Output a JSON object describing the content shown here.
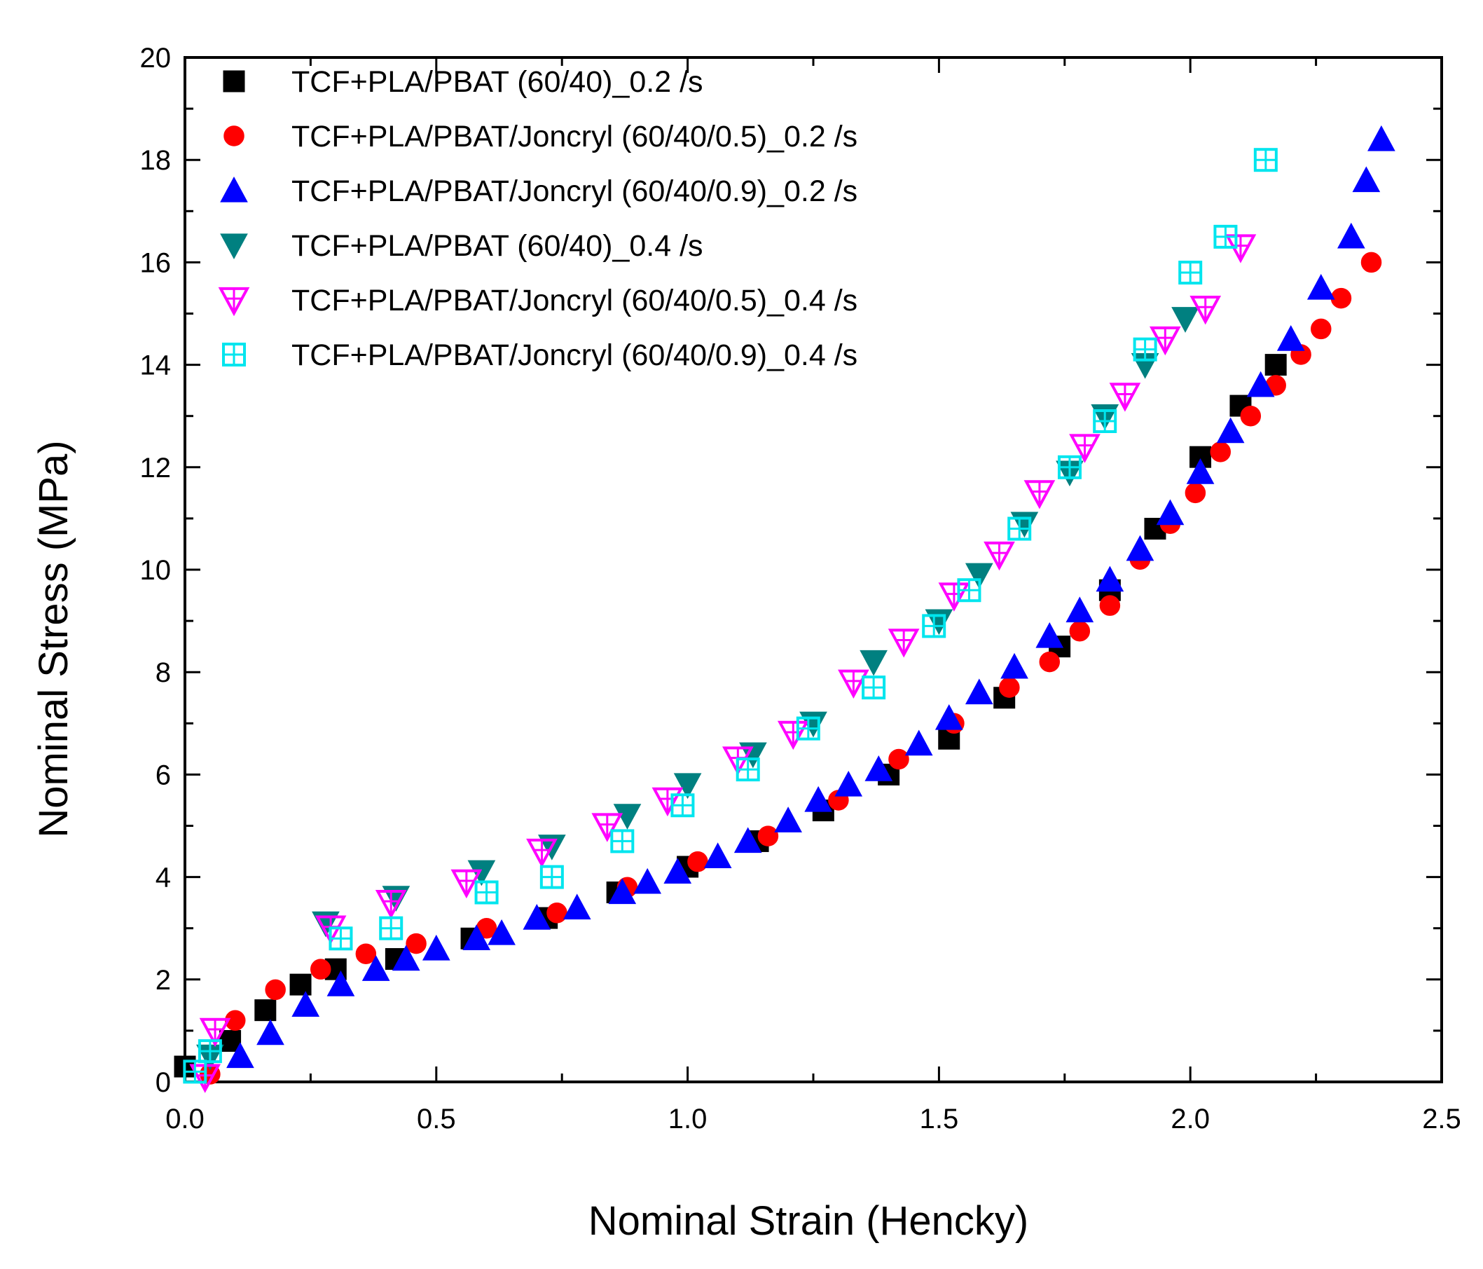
{
  "chart_data": {
    "type": "scatter",
    "title": "",
    "xlabel": "Nominal Strain (Hencky)",
    "ylabel": "Nominal Stress (MPa)",
    "xlim": [
      0.0,
      2.5
    ],
    "ylim": [
      0,
      20
    ],
    "xticks": [
      "0.0",
      "0.5",
      "1.0",
      "1.5",
      "2.0",
      "2.5"
    ],
    "yticks": [
      "0",
      "2",
      "4",
      "6",
      "8",
      "10",
      "12",
      "14",
      "16",
      "18",
      "20"
    ],
    "grid": false,
    "legend_position": "top-left",
    "series": [
      {
        "name": "TCF+PLA/PBAT (60/40)_0.2 /s",
        "marker": "square",
        "filled": true,
        "color": "#000000",
        "points": [
          [
            0.0,
            0.3
          ],
          [
            0.09,
            0.8
          ],
          [
            0.16,
            1.4
          ],
          [
            0.23,
            1.9
          ],
          [
            0.3,
            2.2
          ],
          [
            0.42,
            2.4
          ],
          [
            0.57,
            2.8
          ],
          [
            0.72,
            3.2
          ],
          [
            0.86,
            3.7
          ],
          [
            1.0,
            4.2
          ],
          [
            1.14,
            4.7
          ],
          [
            1.27,
            5.3
          ],
          [
            1.4,
            6.0
          ],
          [
            1.52,
            6.7
          ],
          [
            1.63,
            7.5
          ],
          [
            1.74,
            8.5
          ],
          [
            1.84,
            9.6
          ],
          [
            1.93,
            10.8
          ],
          [
            2.02,
            12.2
          ],
          [
            2.1,
            13.2
          ],
          [
            2.17,
            14.0
          ]
        ]
      },
      {
        "name": "TCF+PLA/PBAT/Joncryl (60/40/0.5)_0.2 /s",
        "marker": "diamond",
        "filled": true,
        "color": "#ff0000",
        "points": [
          [
            0.05,
            0.15
          ],
          [
            0.1,
            1.2
          ],
          [
            0.18,
            1.8
          ],
          [
            0.27,
            2.2
          ],
          [
            0.36,
            2.5
          ],
          [
            0.46,
            2.7
          ],
          [
            0.6,
            3.0
          ],
          [
            0.74,
            3.3
          ],
          [
            0.88,
            3.8
          ],
          [
            1.02,
            4.3
          ],
          [
            1.16,
            4.8
          ],
          [
            1.3,
            5.5
          ],
          [
            1.42,
            6.3
          ],
          [
            1.53,
            7.0
          ],
          [
            1.64,
            7.7
          ],
          [
            1.72,
            8.2
          ],
          [
            1.78,
            8.8
          ],
          [
            1.84,
            9.3
          ],
          [
            1.9,
            10.2
          ],
          [
            1.96,
            10.9
          ],
          [
            2.01,
            11.5
          ],
          [
            2.06,
            12.3
          ],
          [
            2.12,
            13.0
          ],
          [
            2.17,
            13.6
          ],
          [
            2.22,
            14.2
          ],
          [
            2.26,
            14.7
          ],
          [
            2.3,
            15.3
          ],
          [
            2.36,
            16.0
          ]
        ]
      },
      {
        "name": "TCF+PLA/PBAT/Joncryl (60/40/0.9)_0.2 /s",
        "marker": "triangle-up",
        "filled": true,
        "color": "#0000ff",
        "points": [
          [
            0.11,
            0.5
          ],
          [
            0.17,
            0.95
          ],
          [
            0.24,
            1.5
          ],
          [
            0.31,
            1.9
          ],
          [
            0.38,
            2.2
          ],
          [
            0.44,
            2.4
          ],
          [
            0.5,
            2.6
          ],
          [
            0.58,
            2.8
          ],
          [
            0.63,
            2.9
          ],
          [
            0.7,
            3.2
          ],
          [
            0.78,
            3.4
          ],
          [
            0.87,
            3.7
          ],
          [
            0.92,
            3.9
          ],
          [
            0.98,
            4.1
          ],
          [
            1.06,
            4.4
          ],
          [
            1.12,
            4.7
          ],
          [
            1.2,
            5.1
          ],
          [
            1.26,
            5.5
          ],
          [
            1.32,
            5.8
          ],
          [
            1.38,
            6.1
          ],
          [
            1.46,
            6.6
          ],
          [
            1.52,
            7.1
          ],
          [
            1.58,
            7.6
          ],
          [
            1.65,
            8.1
          ],
          [
            1.72,
            8.7
          ],
          [
            1.78,
            9.2
          ],
          [
            1.84,
            9.8
          ],
          [
            1.9,
            10.4
          ],
          [
            1.96,
            11.1
          ],
          [
            2.02,
            11.9
          ],
          [
            2.08,
            12.7
          ],
          [
            2.14,
            13.6
          ],
          [
            2.2,
            14.5
          ],
          [
            2.26,
            15.5
          ],
          [
            2.32,
            16.5
          ],
          [
            2.35,
            17.6
          ],
          [
            2.38,
            18.4
          ]
        ]
      },
      {
        "name": "TCF+PLA/PBAT (60/40)_0.4 /s",
        "marker": "triangle-down",
        "filled": true,
        "color": "#008080",
        "points": [
          [
            0.05,
            0.5
          ],
          [
            0.28,
            3.1
          ],
          [
            0.42,
            3.6
          ],
          [
            0.59,
            4.1
          ],
          [
            0.73,
            4.6
          ],
          [
            0.88,
            5.2
          ],
          [
            1.0,
            5.8
          ],
          [
            1.13,
            6.4
          ],
          [
            1.25,
            7.0
          ],
          [
            1.37,
            8.2
          ],
          [
            1.5,
            9.0
          ],
          [
            1.58,
            9.9
          ],
          [
            1.67,
            10.9
          ],
          [
            1.76,
            11.9
          ],
          [
            1.83,
            13.0
          ],
          [
            1.91,
            14.0
          ],
          [
            1.99,
            14.9
          ]
        ]
      },
      {
        "name": "TCF+PLA/PBAT/Joncryl (60/40/0.5)_0.4 /s",
        "marker": "triangle-down",
        "filled": false,
        "color": "#ff00ff",
        "points": [
          [
            0.04,
            0.1
          ],
          [
            0.06,
            1.0
          ],
          [
            0.29,
            3.0
          ],
          [
            0.41,
            3.5
          ],
          [
            0.56,
            3.9
          ],
          [
            0.71,
            4.5
          ],
          [
            0.84,
            5.0
          ],
          [
            0.96,
            5.5
          ],
          [
            1.1,
            6.3
          ],
          [
            1.21,
            6.8
          ],
          [
            1.33,
            7.8
          ],
          [
            1.43,
            8.6
          ],
          [
            1.53,
            9.5
          ],
          [
            1.62,
            10.3
          ],
          [
            1.7,
            11.5
          ],
          [
            1.79,
            12.4
          ],
          [
            1.87,
            13.4
          ],
          [
            1.95,
            14.5
          ],
          [
            2.03,
            15.1
          ],
          [
            2.1,
            16.3
          ]
        ]
      },
      {
        "name": "TCF+PLA/PBAT/Joncryl (60/40/0.9)_0.4 /s",
        "marker": "square",
        "filled": false,
        "color": "#00e5ee",
        "points": [
          [
            0.02,
            0.2
          ],
          [
            0.05,
            0.6
          ],
          [
            0.31,
            2.8
          ],
          [
            0.41,
            3.0
          ],
          [
            0.6,
            3.7
          ],
          [
            0.73,
            4.0
          ],
          [
            0.87,
            4.7
          ],
          [
            0.99,
            5.4
          ],
          [
            1.12,
            6.1
          ],
          [
            1.24,
            6.9
          ],
          [
            1.37,
            7.7
          ],
          [
            1.49,
            8.9
          ],
          [
            1.56,
            9.6
          ],
          [
            1.66,
            10.8
          ],
          [
            1.76,
            12.0
          ],
          [
            1.83,
            12.9
          ],
          [
            1.91,
            14.3
          ],
          [
            2.0,
            15.8
          ],
          [
            2.07,
            16.5
          ],
          [
            2.15,
            18.0
          ]
        ]
      }
    ]
  }
}
